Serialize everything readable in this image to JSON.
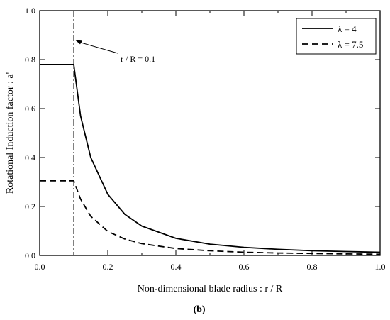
{
  "chart_data": {
    "type": "line",
    "xlabel": "Non-dimensional blade radius : r / R",
    "ylabel": "Rotational Induction factor : a'",
    "xlim": [
      0,
      1
    ],
    "ylim": [
      0,
      1
    ],
    "x_ticks": [
      "0.0",
      "0.2",
      "0.4",
      "0.6",
      "0.8",
      "1.0"
    ],
    "y_ticks": [
      "0.0",
      "0.2",
      "0.4",
      "0.6",
      "0.8",
      "1.0"
    ],
    "grid": false,
    "legend_position": "top-right",
    "panel_label": "(b)",
    "annotation": {
      "text": "r / R = 0.1",
      "vline_x": 0.1,
      "arrow_target": [
        0.1,
        0.88
      ]
    },
    "series": [
      {
        "name": "λ  = 4",
        "style": "solid",
        "x": [
          0.0,
          0.1,
          0.12,
          0.15,
          0.2,
          0.25,
          0.3,
          0.4,
          0.5,
          0.6,
          0.7,
          0.8,
          0.9,
          1.0
        ],
        "y": [
          0.78,
          0.78,
          0.57,
          0.4,
          0.25,
          0.168,
          0.12,
          0.07,
          0.046,
          0.033,
          0.025,
          0.019,
          0.016,
          0.013
        ]
      },
      {
        "name": "λ  = 7.5",
        "style": "dashed",
        "x": [
          0.0,
          0.1,
          0.12,
          0.15,
          0.2,
          0.25,
          0.3,
          0.4,
          0.5,
          0.6,
          0.7,
          0.8,
          0.9,
          1.0
        ],
        "y": [
          0.305,
          0.305,
          0.23,
          0.16,
          0.098,
          0.067,
          0.048,
          0.028,
          0.019,
          0.013,
          0.01,
          0.008,
          0.006,
          0.005
        ]
      }
    ]
  }
}
